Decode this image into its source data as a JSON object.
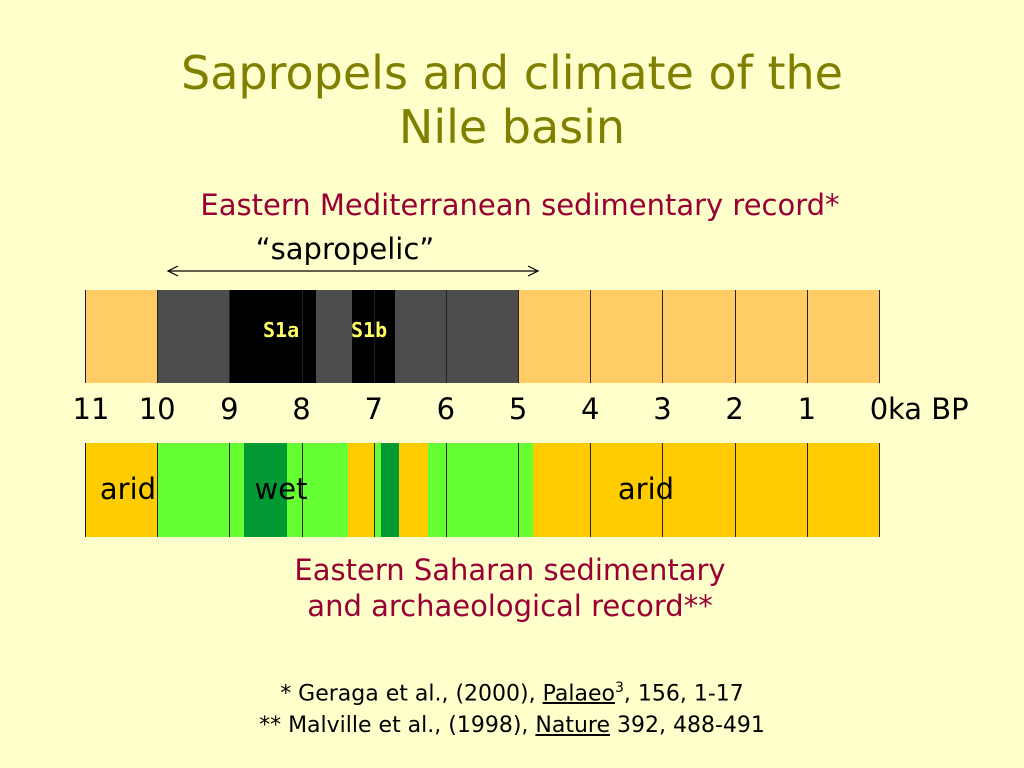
{
  "title": {
    "line1": "Sapropels and climate of the",
    "line2": "Nile basin"
  },
  "med_record": {
    "heading": "Eastern Mediterranean sedimentary record*",
    "sapropelic_label": "“sapropelic”",
    "s1a": "S1a",
    "s1b": "S1b"
  },
  "axis": {
    "ticks": [
      "11",
      "10",
      "9",
      "8",
      "7",
      "6",
      "5",
      "4",
      "3",
      "2",
      "1",
      "0"
    ],
    "unit": "ka BP"
  },
  "sahara_record": {
    "label_arid_left": "arid",
    "label_wet": "wet",
    "label_arid_right": "arid",
    "heading_line1": "Eastern Saharan sedimentary",
    "heading_line2": "and archaeological record**"
  },
  "references": {
    "ref1_prefix": "* Geraga et al., (2000), ",
    "ref1_journal": "Palaeo",
    "ref1_sup": "3",
    "ref1_suffix": ", 156, 1-17",
    "ref2_prefix": "** Malville et al., (1998), ",
    "ref2_journal": "Nature",
    "ref2_suffix": " 392, 488-491"
  },
  "colors": {
    "background": "#FFFFCC",
    "title": "#808000",
    "heading": "#990033",
    "med_oxic": "#FFCC66",
    "med_sapropelic": "#4D4D4D",
    "med_sapropel": "#000000",
    "sahara_arid": "#FFCC00",
    "sahara_wet": "#66FF33",
    "sahara_very_wet": "#009933"
  },
  "med_segments": [
    {
      "from": 11,
      "to": 10,
      "kind": "oxic"
    },
    {
      "from": 10,
      "to": 5,
      "kind": "sapropelic"
    },
    {
      "from": 9,
      "to": 7.8,
      "kind": "sapropel"
    },
    {
      "from": 7.3,
      "to": 6.7,
      "kind": "sapropel"
    },
    {
      "from": 5,
      "to": 0,
      "kind": "oxic"
    }
  ],
  "sahara_segments": [
    {
      "from": 11,
      "to": 10,
      "kind": "arid"
    },
    {
      "from": 10,
      "to": 4.8,
      "kind": "wet"
    },
    {
      "from": 8.8,
      "to": 8.2,
      "kind": "very_wet"
    },
    {
      "from": 7.35,
      "to": 7.0,
      "kind": "arid"
    },
    {
      "from": 6.9,
      "to": 6.65,
      "kind": "very_wet"
    },
    {
      "from": 6.65,
      "to": 6.25,
      "kind": "arid"
    },
    {
      "from": 4.8,
      "to": 0,
      "kind": "arid"
    }
  ]
}
